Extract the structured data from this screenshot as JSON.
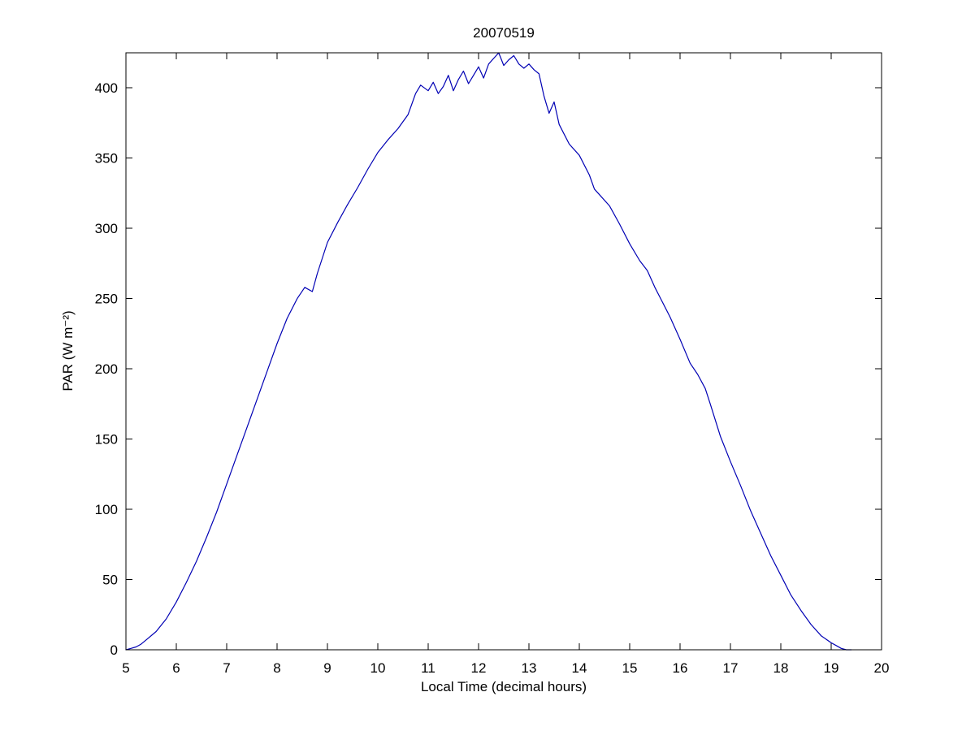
{
  "chart_data": {
    "type": "line",
    "title": "20070519",
    "xlabel": "Local Time (decimal hours)",
    "ylabel": "PAR (W m⁻²)",
    "xlim": [
      5,
      20
    ],
    "ylim": [
      0,
      425
    ],
    "xticks": [
      5,
      6,
      7,
      8,
      9,
      10,
      11,
      12,
      13,
      14,
      15,
      16,
      17,
      18,
      19,
      20
    ],
    "yticks": [
      0,
      50,
      100,
      150,
      200,
      250,
      300,
      350,
      400
    ],
    "grid": false,
    "legend": null,
    "line_color": "#0000b4",
    "axis_color": "#000000",
    "series": [
      {
        "name": "PAR",
        "x": [
          5.0,
          5.1,
          5.2,
          5.3,
          5.4,
          5.6,
          5.8,
          6.0,
          6.2,
          6.4,
          6.6,
          6.8,
          7.0,
          7.2,
          7.4,
          7.6,
          7.8,
          8.0,
          8.2,
          8.4,
          8.55,
          8.7,
          8.8,
          9.0,
          9.2,
          9.4,
          9.6,
          9.8,
          10.0,
          10.2,
          10.4,
          10.6,
          10.75,
          10.85,
          11.0,
          11.1,
          11.2,
          11.3,
          11.4,
          11.5,
          11.6,
          11.7,
          11.8,
          11.9,
          12.0,
          12.1,
          12.2,
          12.3,
          12.4,
          12.5,
          12.6,
          12.7,
          12.8,
          12.9,
          13.0,
          13.1,
          13.2,
          13.3,
          13.4,
          13.5,
          13.6,
          13.7,
          13.8,
          14.0,
          14.2,
          14.3,
          14.4,
          14.6,
          14.8,
          15.0,
          15.2,
          15.35,
          15.5,
          15.6,
          15.8,
          16.0,
          16.2,
          16.35,
          16.5,
          16.6,
          16.8,
          17.0,
          17.2,
          17.4,
          17.6,
          17.8,
          18.0,
          18.2,
          18.4,
          18.6,
          18.8,
          19.0,
          19.1,
          19.2,
          19.3,
          19.4
        ],
        "y": [
          0,
          1,
          2,
          4,
          7,
          13,
          22,
          34,
          48,
          63,
          80,
          98,
          118,
          138,
          158,
          178,
          198,
          218,
          236,
          250,
          258,
          255,
          268,
          290,
          304,
          317,
          329,
          342,
          354,
          363,
          371,
          381,
          396,
          402,
          398,
          404,
          396,
          401,
          409,
          398,
          406,
          412,
          403,
          409,
          415,
          407,
          417,
          421,
          425,
          416,
          420,
          423,
          417,
          414,
          417,
          413,
          410,
          394,
          382,
          390,
          374,
          367,
          360,
          352,
          338,
          328,
          324,
          316,
          303,
          289,
          277,
          270,
          258,
          251,
          237,
          221,
          204,
          196,
          186,
          175,
          152,
          134,
          117,
          99,
          83,
          67,
          53,
          39,
          28,
          18,
          10,
          5,
          3,
          1,
          0,
          0
        ]
      }
    ]
  }
}
